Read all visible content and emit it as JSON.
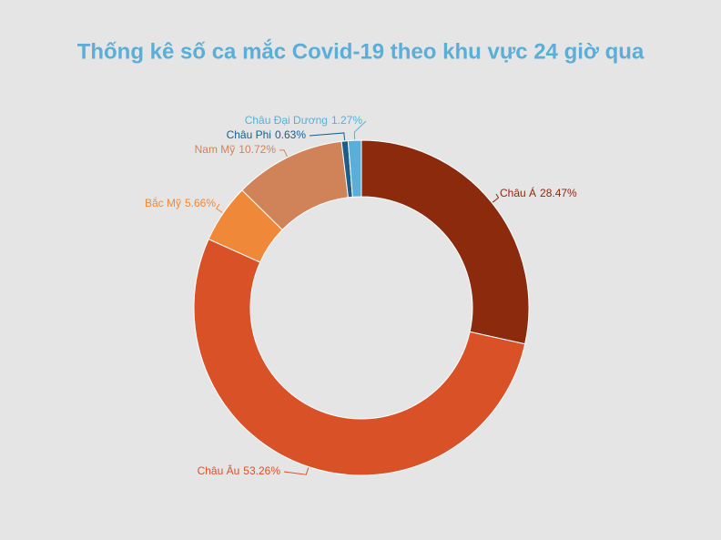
{
  "chart_data": {
    "type": "donut",
    "title": "Thống kê số ca mắc Covid-19 theo khu vực 24 giờ qua",
    "categories": [
      "Châu Á",
      "Châu Âu",
      "Bắc Mỹ",
      "Nam Mỹ",
      "Châu Phi",
      "Châu Đại Dương"
    ],
    "values": [
      28.47,
      53.26,
      5.66,
      10.72,
      0.63,
      1.27
    ],
    "value_labels": [
      "28.47%",
      "53.26%",
      "5.66%",
      "10.72%",
      "0.63%",
      "1.27%"
    ],
    "colors": [
      "#8b2a0c",
      "#d95127",
      "#f0883a",
      "#d08358",
      "#1b5e8a",
      "#5aaed8"
    ]
  }
}
